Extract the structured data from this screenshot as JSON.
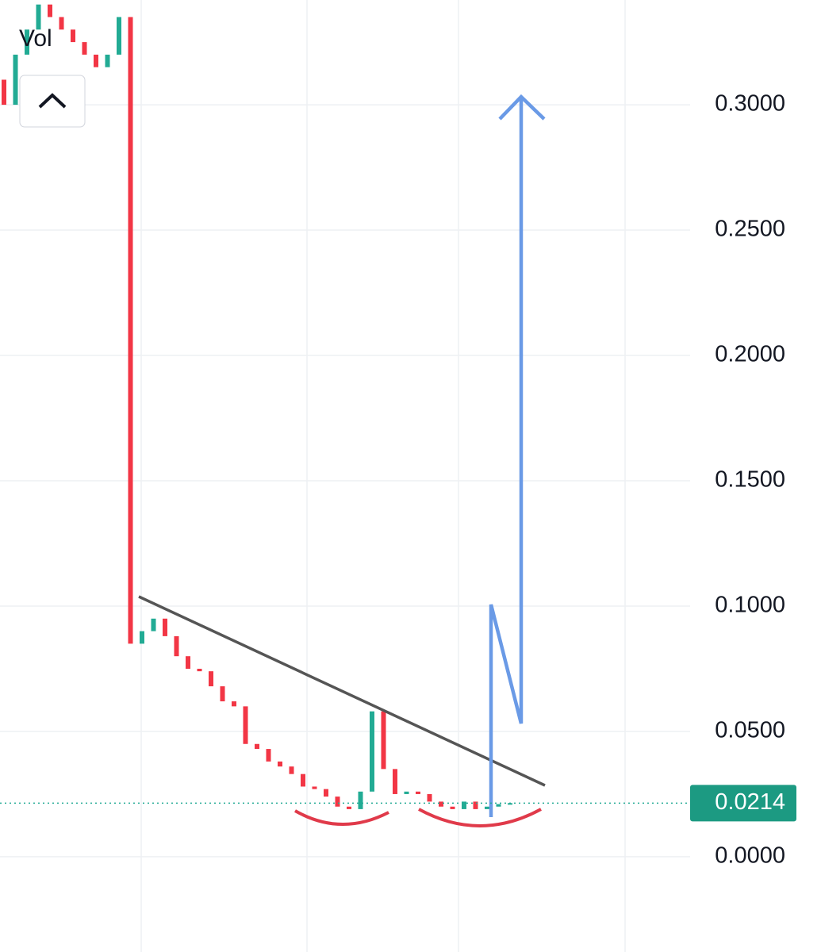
{
  "chart_data": {
    "type": "candlestick",
    "label": "Vol",
    "open": [
      0.31,
      0.3,
      0.32,
      0.33,
      0.34,
      0.335,
      0.33,
      0.325,
      0.32,
      0.315,
      0.32,
      0.335,
      0.085,
      0.09,
      0.095,
      0.088,
      0.08,
      0.075,
      0.074,
      0.068,
      0.062,
      0.06,
      0.045,
      0.043,
      0.038,
      0.036,
      0.033,
      0.028,
      0.027,
      0.024,
      0.02,
      0.019,
      0.026,
      0.058,
      0.035,
      0.025,
      0.026,
      0.025,
      0.022,
      0.02,
      0.019,
      0.022,
      0.019,
      0.02,
      0.021
    ],
    "close": [
      0.3,
      0.32,
      0.33,
      0.34,
      0.335,
      0.33,
      0.325,
      0.32,
      0.315,
      0.32,
      0.335,
      0.085,
      0.09,
      0.095,
      0.088,
      0.08,
      0.075,
      0.074,
      0.068,
      0.062,
      0.06,
      0.045,
      0.043,
      0.038,
      0.036,
      0.033,
      0.028,
      0.027,
      0.024,
      0.02,
      0.019,
      0.026,
      0.058,
      0.035,
      0.025,
      0.026,
      0.025,
      0.022,
      0.02,
      0.019,
      0.022,
      0.019,
      0.02,
      0.021,
      0.0214
    ],
    "up_color": "#22ab94",
    "down_color": "#f23645",
    "ylim": [
      -0.038,
      0.3418
    ],
    "yticks": [
      {
        "value": 0,
        "label": "0.0000"
      },
      {
        "value": 0.05,
        "label": "0.0500"
      },
      {
        "value": 0.1,
        "label": "0.1000"
      },
      {
        "value": 0.15,
        "label": "0.1500"
      },
      {
        "value": 0.2,
        "label": "0.2000"
      },
      {
        "value": 0.25,
        "label": "0.2500"
      },
      {
        "value": 0.3,
        "label": "0.3000"
      }
    ],
    "last_price": 0.0214,
    "grid": true
  }
}
